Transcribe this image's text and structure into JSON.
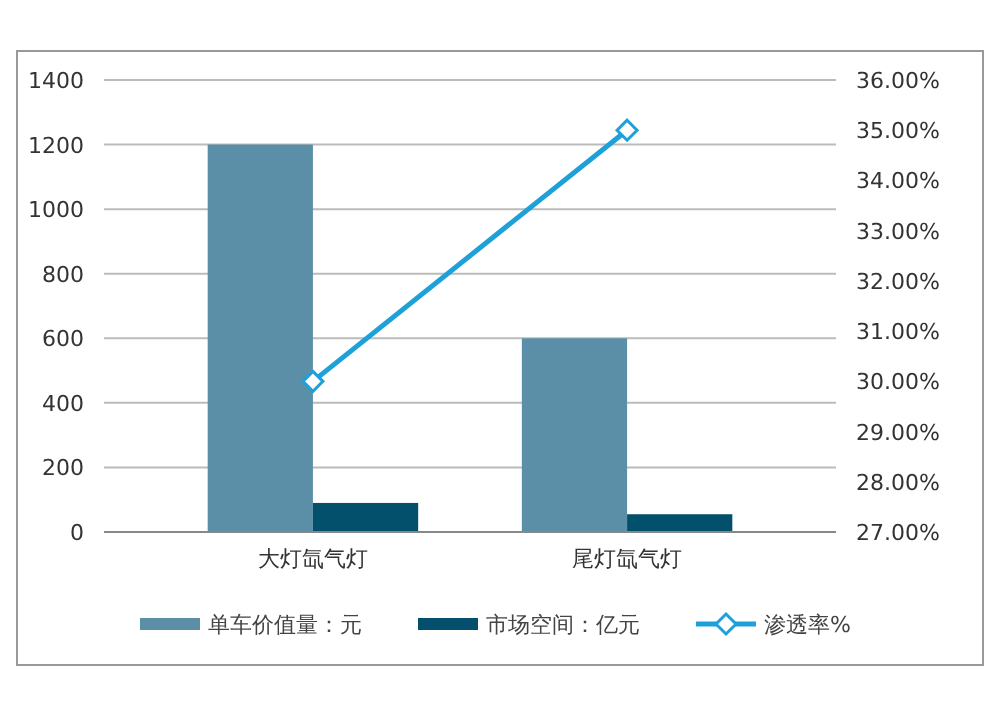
{
  "chart_data": {
    "type": "bar",
    "categories": [
      "大灯氙气灯",
      "尾灯氙气灯"
    ],
    "series": [
      {
        "name": "单车价值量：元",
        "color": "#5b8fa8",
        "values": [
          1200,
          600
        ]
      },
      {
        "name": "市场空间：亿元",
        "color": "#02506b",
        "values": [
          90,
          55
        ]
      },
      {
        "name": "渗透率%",
        "color": "#1ea0d8",
        "values": [
          30,
          35
        ],
        "type": "line",
        "axis": "y2",
        "marker": "diamond"
      }
    ],
    "ylim": [
      0,
      1400
    ],
    "yticks": [
      0,
      200,
      400,
      600,
      800,
      1000,
      1200,
      1400
    ],
    "y2lim": [
      27,
      36
    ],
    "y2ticks": [
      {
        "value": 27,
        "label": "27.00%"
      },
      {
        "value": 28,
        "label": "28.00%"
      },
      {
        "value": 29,
        "label": "29.00%"
      },
      {
        "value": 30,
        "label": "30.00%"
      },
      {
        "value": 31,
        "label": "31.00%"
      },
      {
        "value": 32,
        "label": "32.00%"
      },
      {
        "value": 33,
        "label": "33.00%"
      },
      {
        "value": 34,
        "label": "34.00%"
      },
      {
        "value": 35,
        "label": "35.00%"
      },
      {
        "value": 36,
        "label": "36.00%"
      }
    ],
    "grid": "y",
    "legend": "bottom"
  }
}
